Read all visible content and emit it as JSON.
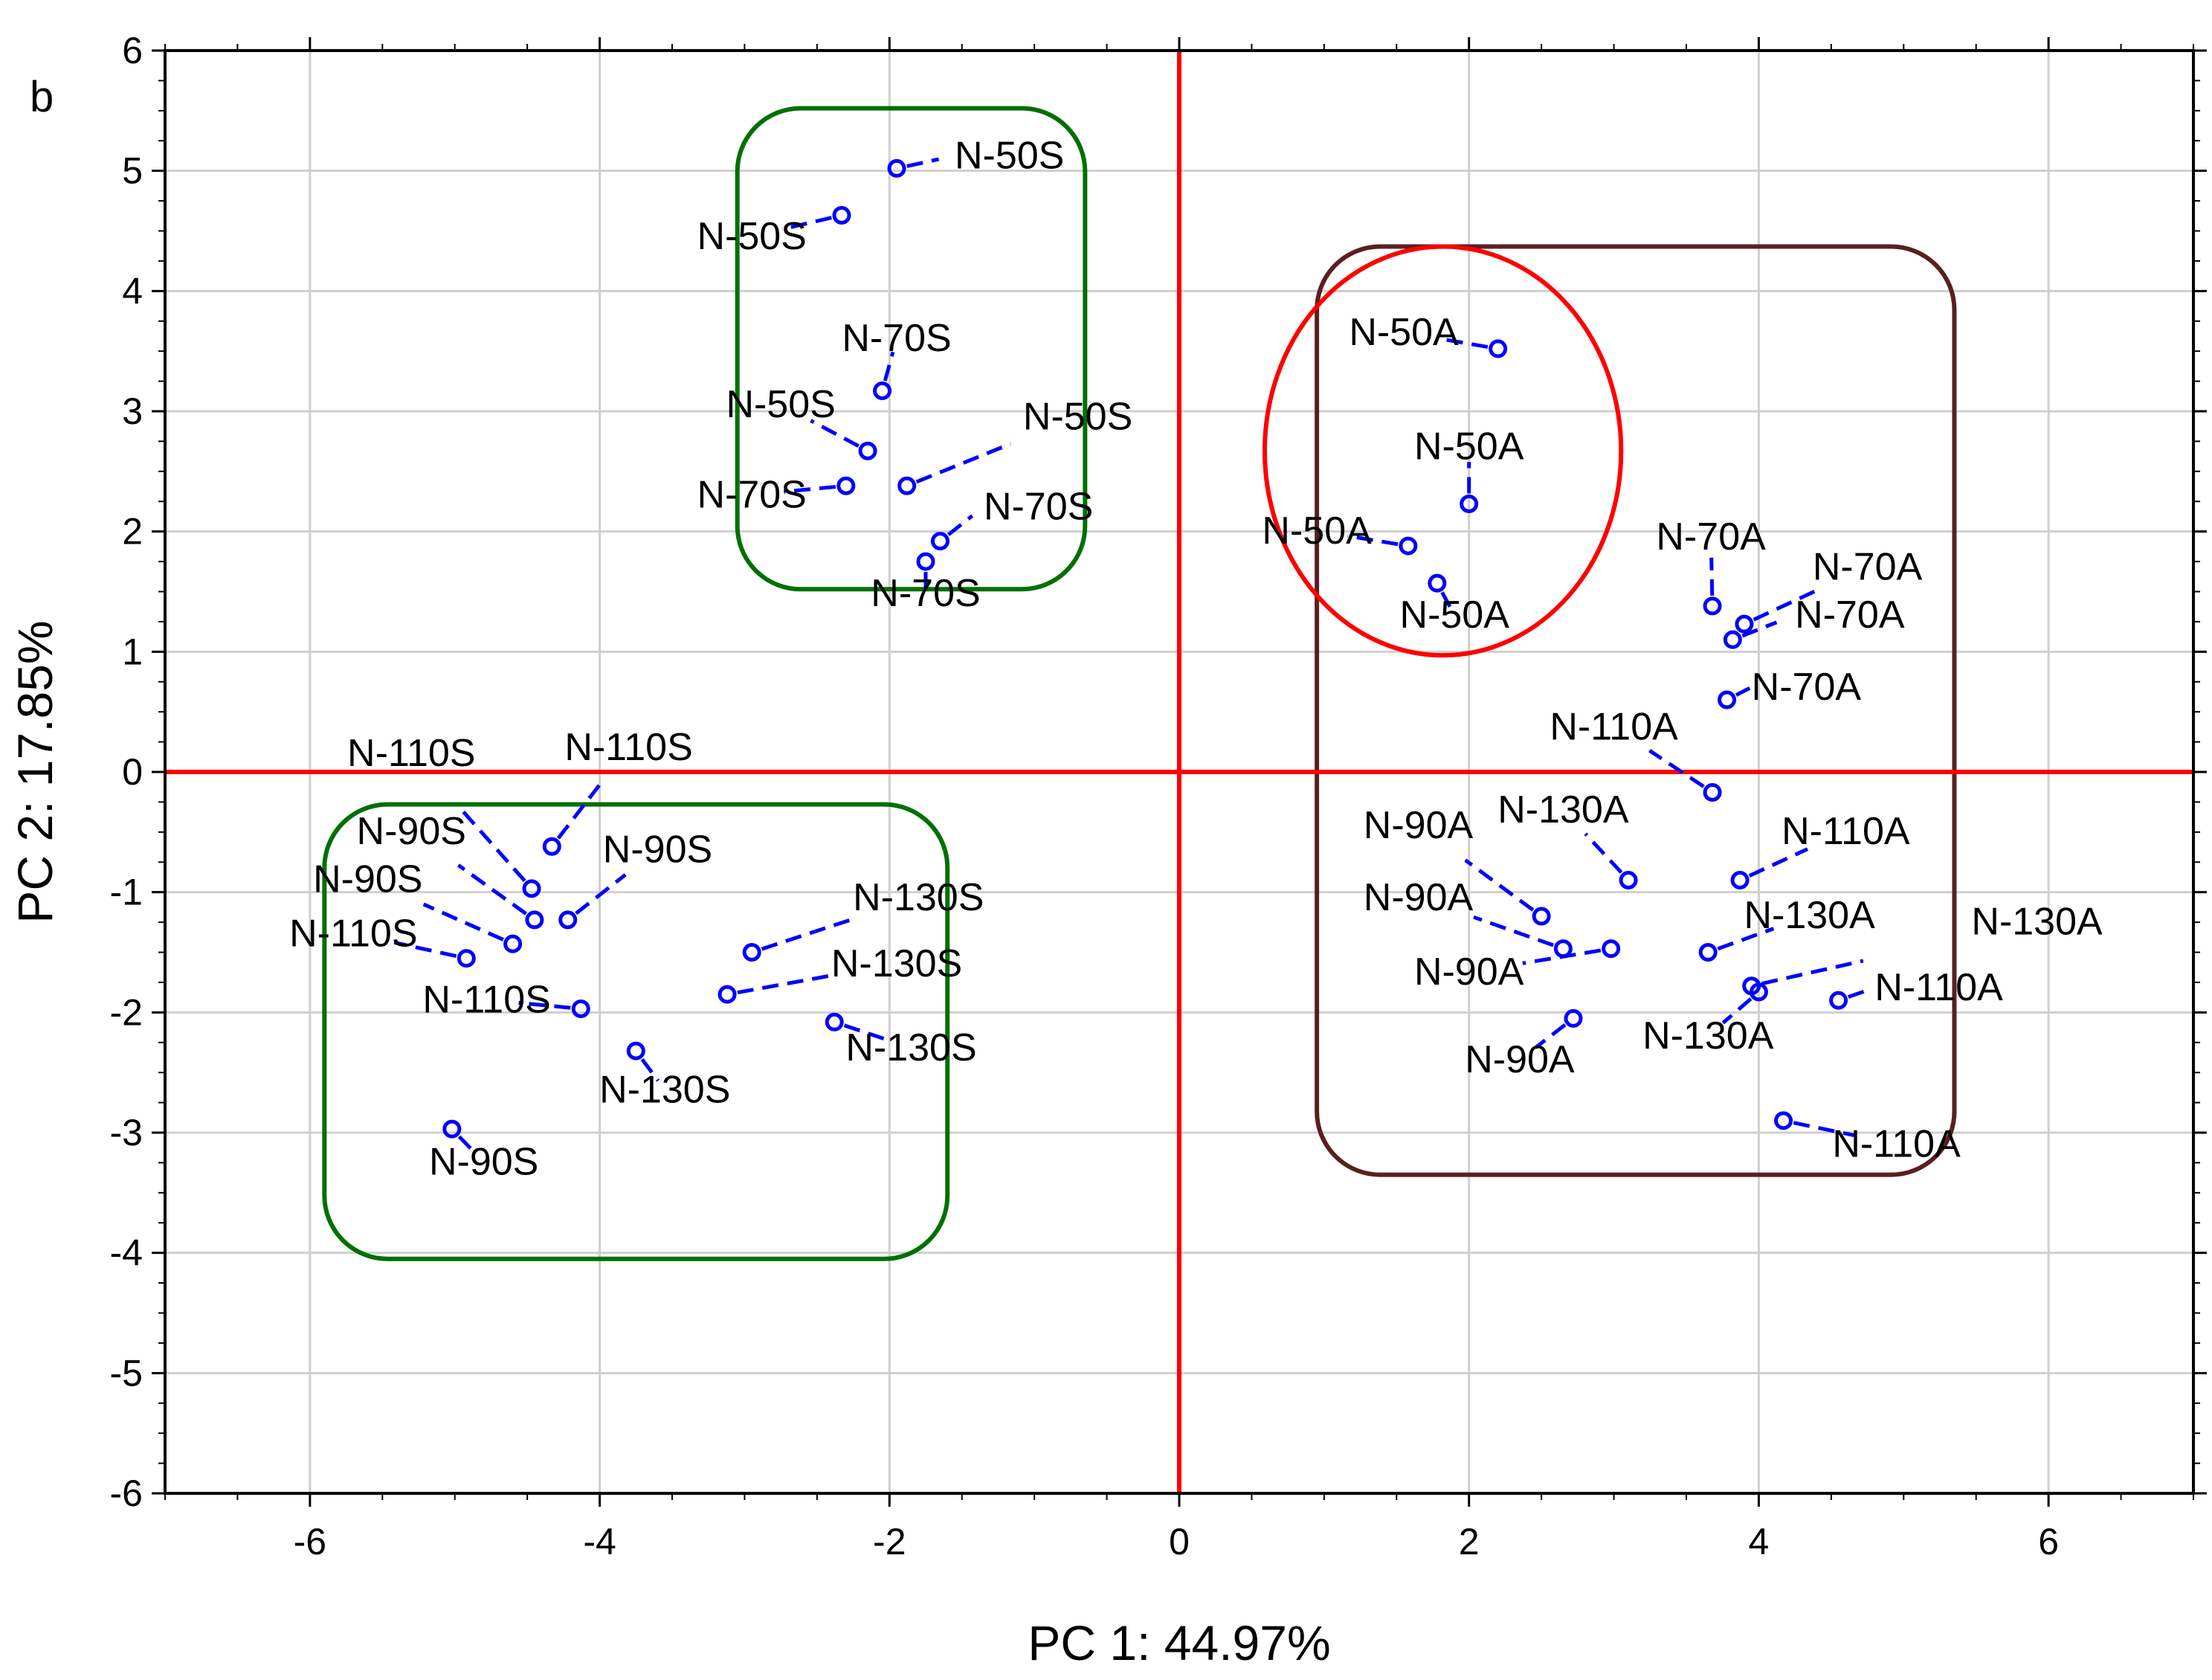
{
  "chart_data": {
    "type": "scatter",
    "panel_label": "b",
    "xlabel": "PC 1: 44.97%",
    "ylabel": "PC 2: 17.85%",
    "xlim": [
      -7,
      7
    ],
    "ylim": [
      -6,
      6
    ],
    "xticks": [
      -6,
      -4,
      -2,
      0,
      2,
      4,
      6
    ],
    "yticks": [
      -6,
      -5,
      -4,
      -3,
      -2,
      -1,
      0,
      1,
      2,
      3,
      4,
      5,
      6
    ],
    "grid": true,
    "reference_lines": {
      "x": 0,
      "y": 0,
      "color": "#ff0000"
    },
    "marker_color": "#0000ff",
    "points": [
      {
        "x": -1.95,
        "y": 5.02,
        "label": "N-50S",
        "lx": -1.55,
        "ly": 5.02,
        "anchor": "start"
      },
      {
        "x": -2.33,
        "y": 4.63,
        "label": "N-50S",
        "lx": -2.95,
        "ly": 4.35,
        "anchor": "middle"
      },
      {
        "x": -2.05,
        "y": 3.17,
        "label": "N-70S",
        "lx": -1.95,
        "ly": 3.5,
        "anchor": "middle"
      },
      {
        "x": -2.15,
        "y": 2.67,
        "label": "N-50S",
        "lx": -2.75,
        "ly": 2.95,
        "anchor": "middle"
      },
      {
        "x": -1.88,
        "y": 2.38,
        "label": "N-50S",
        "lx": -0.7,
        "ly": 2.85,
        "anchor": "middle"
      },
      {
        "x": -2.3,
        "y": 2.38,
        "label": "N-70S",
        "lx": -2.95,
        "ly": 2.2,
        "anchor": "middle"
      },
      {
        "x": -1.65,
        "y": 1.92,
        "label": "N-70S",
        "lx": -1.35,
        "ly": 2.1,
        "anchor": "start"
      },
      {
        "x": -1.75,
        "y": 1.75,
        "label": "N-70S",
        "lx": -1.75,
        "ly": 1.38,
        "anchor": "middle"
      },
      {
        "x": 2.2,
        "y": 3.52,
        "label": "N-50A",
        "lx": 1.55,
        "ly": 3.55,
        "anchor": "middle"
      },
      {
        "x": 2.0,
        "y": 2.23,
        "label": "N-50A",
        "lx": 2.0,
        "ly": 2.6,
        "anchor": "middle"
      },
      {
        "x": 1.58,
        "y": 1.88,
        "label": "N-50A",
        "lx": 0.95,
        "ly": 1.9,
        "anchor": "middle"
      },
      {
        "x": 1.78,
        "y": 1.57,
        "label": "N-50A",
        "lx": 1.9,
        "ly": 1.2,
        "anchor": "middle"
      },
      {
        "x": 3.68,
        "y": 1.38,
        "label": "N-70A",
        "lx": 3.67,
        "ly": 1.85,
        "anchor": "middle"
      },
      {
        "x": 3.9,
        "y": 1.23,
        "label": "N-70A",
        "lx": 4.75,
        "ly": 1.6,
        "anchor": "middle"
      },
      {
        "x": 3.82,
        "y": 1.1,
        "label": "N-70A",
        "lx": 4.25,
        "ly": 1.2,
        "anchor": "start"
      },
      {
        "x": 3.78,
        "y": 0.6,
        "label": "N-70A",
        "lx": 3.95,
        "ly": 0.6,
        "anchor": "start"
      },
      {
        "x": 3.68,
        "y": -0.17,
        "label": "N-110A",
        "lx": 3.0,
        "ly": 0.27,
        "anchor": "middle"
      },
      {
        "x": 3.1,
        "y": -0.9,
        "label": "N-130A",
        "lx": 2.65,
        "ly": -0.42,
        "anchor": "middle"
      },
      {
        "x": 3.87,
        "y": -0.9,
        "label": "N-110A",
        "lx": 4.6,
        "ly": -0.6,
        "anchor": "middle"
      },
      {
        "x": 2.5,
        "y": -1.2,
        "label": "N-90A",
        "lx": 1.65,
        "ly": -0.55,
        "anchor": "middle"
      },
      {
        "x": 2.65,
        "y": -1.47,
        "label": "N-90A",
        "lx": 1.65,
        "ly": -1.15,
        "anchor": "middle"
      },
      {
        "x": 2.98,
        "y": -1.47,
        "label": "N-90A",
        "lx": 2.0,
        "ly": -1.77,
        "anchor": "middle"
      },
      {
        "x": 3.65,
        "y": -1.5,
        "label": "N-130A",
        "lx": 4.35,
        "ly": -1.3,
        "anchor": "middle"
      },
      {
        "x": 3.95,
        "y": -1.78,
        "label": "N-130A",
        "lx": 5.92,
        "ly": -1.35,
        "anchor": "middle"
      },
      {
        "x": 4.0,
        "y": -1.83,
        "label": "N-130A",
        "lx": 3.65,
        "ly": -2.3,
        "anchor": "middle"
      },
      {
        "x": 4.55,
        "y": -1.9,
        "label": "N-110A",
        "lx": 4.8,
        "ly": -1.9,
        "anchor": "start"
      },
      {
        "x": 2.72,
        "y": -2.05,
        "label": "N-90A",
        "lx": 2.35,
        "ly": -2.5,
        "anchor": "middle"
      },
      {
        "x": 4.17,
        "y": -2.9,
        "label": "N-110A",
        "lx": 4.95,
        "ly": -3.2,
        "anchor": "middle"
      },
      {
        "x": -4.33,
        "y": -0.62,
        "label": "N-110S",
        "lx": -3.8,
        "ly": 0.1,
        "anchor": "middle"
      },
      {
        "x": -4.47,
        "y": -0.97,
        "label": "N-110S",
        "lx": -5.3,
        "ly": 0.05,
        "anchor": "middle"
      },
      {
        "x": -4.22,
        "y": -1.23,
        "label": "N-90S",
        "lx": -3.6,
        "ly": -0.75,
        "anchor": "middle"
      },
      {
        "x": -4.45,
        "y": -1.23,
        "label": "N-90S",
        "lx": -5.3,
        "ly": -0.6,
        "anchor": "middle"
      },
      {
        "x": -4.6,
        "y": -1.43,
        "label": "N-90S",
        "lx": -5.6,
        "ly": -1.0,
        "anchor": "middle"
      },
      {
        "x": -4.92,
        "y": -1.55,
        "label": "N-110S",
        "lx": -5.7,
        "ly": -1.45,
        "anchor": "middle"
      },
      {
        "x": -4.13,
        "y": -1.97,
        "label": "N-110S",
        "lx": -4.78,
        "ly": -2.0,
        "anchor": "middle"
      },
      {
        "x": -2.95,
        "y": -1.5,
        "label": "N-130S",
        "lx": -1.8,
        "ly": -1.15,
        "anchor": "middle"
      },
      {
        "x": -3.12,
        "y": -1.85,
        "label": "N-130S",
        "lx": -1.95,
        "ly": -1.7,
        "anchor": "middle"
      },
      {
        "x": -2.38,
        "y": -2.08,
        "label": "N-130S",
        "lx": -1.85,
        "ly": -2.4,
        "anchor": "middle"
      },
      {
        "x": -3.75,
        "y": -2.32,
        "label": "N-130S",
        "lx": -3.55,
        "ly": -2.75,
        "anchor": "middle"
      },
      {
        "x": -5.02,
        "y": -2.97,
        "label": "N-90S",
        "lx": -4.8,
        "ly": -3.35,
        "anchor": "middle"
      }
    ],
    "groups": [
      {
        "shape": "rounded-rect",
        "color": "#007000",
        "x0": -3.05,
        "x1": -0.65,
        "y0": 1.52,
        "y1": 5.52
      },
      {
        "shape": "rounded-rect",
        "color": "#007000",
        "x0": -5.9,
        "x1": -1.6,
        "y0": -4.05,
        "y1": -0.27
      },
      {
        "shape": "rounded-rect",
        "color": "#5a1f1f",
        "x0": 0.95,
        "x1": 5.35,
        "y0": -3.35,
        "y1": 4.37
      },
      {
        "shape": "ellipse",
        "color": "#ff0000",
        "cx": 1.82,
        "cy": 2.67,
        "rx": 1.23,
        "ry": 1.7
      }
    ]
  }
}
